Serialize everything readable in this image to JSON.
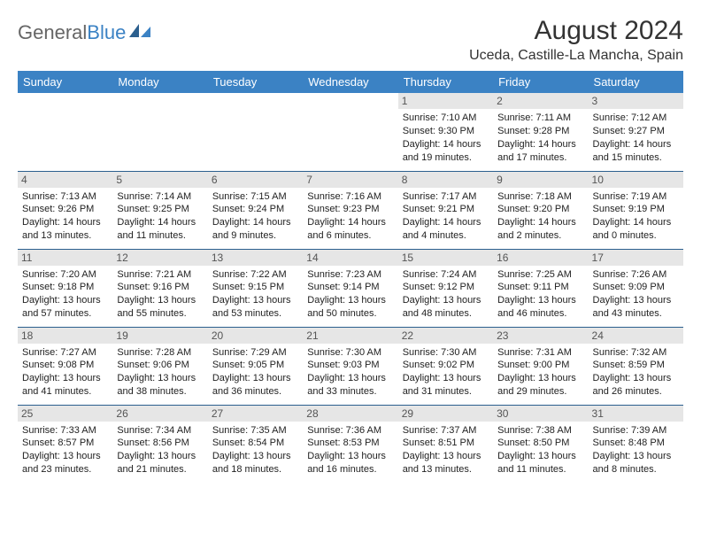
{
  "brand": {
    "part1": "General",
    "part2": "Blue"
  },
  "title": "August 2024",
  "location": "Uceda, Castille-La Mancha, Spain",
  "colors": {
    "header_bg": "#3b82c4",
    "header_fg": "#ffffff",
    "daynum_bg": "#e6e6e6",
    "row_border": "#2b5f8e",
    "text": "#222222"
  },
  "day_headers": [
    "Sunday",
    "Monday",
    "Tuesday",
    "Wednesday",
    "Thursday",
    "Friday",
    "Saturday"
  ],
  "weeks": [
    [
      {
        "empty": true
      },
      {
        "empty": true
      },
      {
        "empty": true
      },
      {
        "empty": true
      },
      {
        "n": "1",
        "sunrise": "Sunrise: 7:10 AM",
        "sunset": "Sunset: 9:30 PM",
        "day1": "Daylight: 14 hours",
        "day2": "and 19 minutes."
      },
      {
        "n": "2",
        "sunrise": "Sunrise: 7:11 AM",
        "sunset": "Sunset: 9:28 PM",
        "day1": "Daylight: 14 hours",
        "day2": "and 17 minutes."
      },
      {
        "n": "3",
        "sunrise": "Sunrise: 7:12 AM",
        "sunset": "Sunset: 9:27 PM",
        "day1": "Daylight: 14 hours",
        "day2": "and 15 minutes."
      }
    ],
    [
      {
        "n": "4",
        "sunrise": "Sunrise: 7:13 AM",
        "sunset": "Sunset: 9:26 PM",
        "day1": "Daylight: 14 hours",
        "day2": "and 13 minutes."
      },
      {
        "n": "5",
        "sunrise": "Sunrise: 7:14 AM",
        "sunset": "Sunset: 9:25 PM",
        "day1": "Daylight: 14 hours",
        "day2": "and 11 minutes."
      },
      {
        "n": "6",
        "sunrise": "Sunrise: 7:15 AM",
        "sunset": "Sunset: 9:24 PM",
        "day1": "Daylight: 14 hours",
        "day2": "and 9 minutes."
      },
      {
        "n": "7",
        "sunrise": "Sunrise: 7:16 AM",
        "sunset": "Sunset: 9:23 PM",
        "day1": "Daylight: 14 hours",
        "day2": "and 6 minutes."
      },
      {
        "n": "8",
        "sunrise": "Sunrise: 7:17 AM",
        "sunset": "Sunset: 9:21 PM",
        "day1": "Daylight: 14 hours",
        "day2": "and 4 minutes."
      },
      {
        "n": "9",
        "sunrise": "Sunrise: 7:18 AM",
        "sunset": "Sunset: 9:20 PM",
        "day1": "Daylight: 14 hours",
        "day2": "and 2 minutes."
      },
      {
        "n": "10",
        "sunrise": "Sunrise: 7:19 AM",
        "sunset": "Sunset: 9:19 PM",
        "day1": "Daylight: 14 hours",
        "day2": "and 0 minutes."
      }
    ],
    [
      {
        "n": "11",
        "sunrise": "Sunrise: 7:20 AM",
        "sunset": "Sunset: 9:18 PM",
        "day1": "Daylight: 13 hours",
        "day2": "and 57 minutes."
      },
      {
        "n": "12",
        "sunrise": "Sunrise: 7:21 AM",
        "sunset": "Sunset: 9:16 PM",
        "day1": "Daylight: 13 hours",
        "day2": "and 55 minutes."
      },
      {
        "n": "13",
        "sunrise": "Sunrise: 7:22 AM",
        "sunset": "Sunset: 9:15 PM",
        "day1": "Daylight: 13 hours",
        "day2": "and 53 minutes."
      },
      {
        "n": "14",
        "sunrise": "Sunrise: 7:23 AM",
        "sunset": "Sunset: 9:14 PM",
        "day1": "Daylight: 13 hours",
        "day2": "and 50 minutes."
      },
      {
        "n": "15",
        "sunrise": "Sunrise: 7:24 AM",
        "sunset": "Sunset: 9:12 PM",
        "day1": "Daylight: 13 hours",
        "day2": "and 48 minutes."
      },
      {
        "n": "16",
        "sunrise": "Sunrise: 7:25 AM",
        "sunset": "Sunset: 9:11 PM",
        "day1": "Daylight: 13 hours",
        "day2": "and 46 minutes."
      },
      {
        "n": "17",
        "sunrise": "Sunrise: 7:26 AM",
        "sunset": "Sunset: 9:09 PM",
        "day1": "Daylight: 13 hours",
        "day2": "and 43 minutes."
      }
    ],
    [
      {
        "n": "18",
        "sunrise": "Sunrise: 7:27 AM",
        "sunset": "Sunset: 9:08 PM",
        "day1": "Daylight: 13 hours",
        "day2": "and 41 minutes."
      },
      {
        "n": "19",
        "sunrise": "Sunrise: 7:28 AM",
        "sunset": "Sunset: 9:06 PM",
        "day1": "Daylight: 13 hours",
        "day2": "and 38 minutes."
      },
      {
        "n": "20",
        "sunrise": "Sunrise: 7:29 AM",
        "sunset": "Sunset: 9:05 PM",
        "day1": "Daylight: 13 hours",
        "day2": "and 36 minutes."
      },
      {
        "n": "21",
        "sunrise": "Sunrise: 7:30 AM",
        "sunset": "Sunset: 9:03 PM",
        "day1": "Daylight: 13 hours",
        "day2": "and 33 minutes."
      },
      {
        "n": "22",
        "sunrise": "Sunrise: 7:30 AM",
        "sunset": "Sunset: 9:02 PM",
        "day1": "Daylight: 13 hours",
        "day2": "and 31 minutes."
      },
      {
        "n": "23",
        "sunrise": "Sunrise: 7:31 AM",
        "sunset": "Sunset: 9:00 PM",
        "day1": "Daylight: 13 hours",
        "day2": "and 29 minutes."
      },
      {
        "n": "24",
        "sunrise": "Sunrise: 7:32 AM",
        "sunset": "Sunset: 8:59 PM",
        "day1": "Daylight: 13 hours",
        "day2": "and 26 minutes."
      }
    ],
    [
      {
        "n": "25",
        "sunrise": "Sunrise: 7:33 AM",
        "sunset": "Sunset: 8:57 PM",
        "day1": "Daylight: 13 hours",
        "day2": "and 23 minutes."
      },
      {
        "n": "26",
        "sunrise": "Sunrise: 7:34 AM",
        "sunset": "Sunset: 8:56 PM",
        "day1": "Daylight: 13 hours",
        "day2": "and 21 minutes."
      },
      {
        "n": "27",
        "sunrise": "Sunrise: 7:35 AM",
        "sunset": "Sunset: 8:54 PM",
        "day1": "Daylight: 13 hours",
        "day2": "and 18 minutes."
      },
      {
        "n": "28",
        "sunrise": "Sunrise: 7:36 AM",
        "sunset": "Sunset: 8:53 PM",
        "day1": "Daylight: 13 hours",
        "day2": "and 16 minutes."
      },
      {
        "n": "29",
        "sunrise": "Sunrise: 7:37 AM",
        "sunset": "Sunset: 8:51 PM",
        "day1": "Daylight: 13 hours",
        "day2": "and 13 minutes."
      },
      {
        "n": "30",
        "sunrise": "Sunrise: 7:38 AM",
        "sunset": "Sunset: 8:50 PM",
        "day1": "Daylight: 13 hours",
        "day2": "and 11 minutes."
      },
      {
        "n": "31",
        "sunrise": "Sunrise: 7:39 AM",
        "sunset": "Sunset: 8:48 PM",
        "day1": "Daylight: 13 hours",
        "day2": "and 8 minutes."
      }
    ]
  ]
}
